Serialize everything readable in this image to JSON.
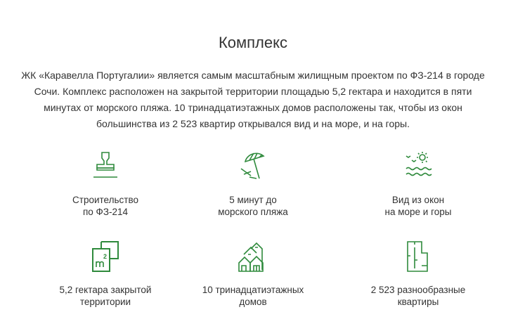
{
  "section": {
    "title": "Комплекс",
    "description": "ЖК «Каравелла Португалии» является самым масштабным жилищным проектом по ФЗ-214 в городе Сочи. Комплекс расположен на закрытой территории площадью 5,2 гектара и находится в пяти минутах от морского пляжа. 10 тринадцатиэтажных домов расположены так, чтобы из окон большинства из 2 523 квартир открывался вид и на море, и на горы."
  },
  "accent": "#2f8a3c",
  "features": [
    {
      "icon": "stamp-icon",
      "line1": "Строительство",
      "line2": "по ФЗ-214"
    },
    {
      "icon": "beach-umbrella-icon",
      "line1": "5 минут до",
      "line2": "морского пляжа"
    },
    {
      "icon": "sea-view-icon",
      "line1": "Вид из окон",
      "line2": "на море и горы"
    },
    {
      "icon": "area-m2-icon",
      "line1": "5,2 гектара закрытой",
      "line2": "территории"
    },
    {
      "icon": "houses-icon",
      "line1": "10 тринадцатиэтажных",
      "line2": "домов"
    },
    {
      "icon": "floor-plan-icon",
      "line1": "2 523 разнообразные",
      "line2": "квартиры"
    }
  ]
}
